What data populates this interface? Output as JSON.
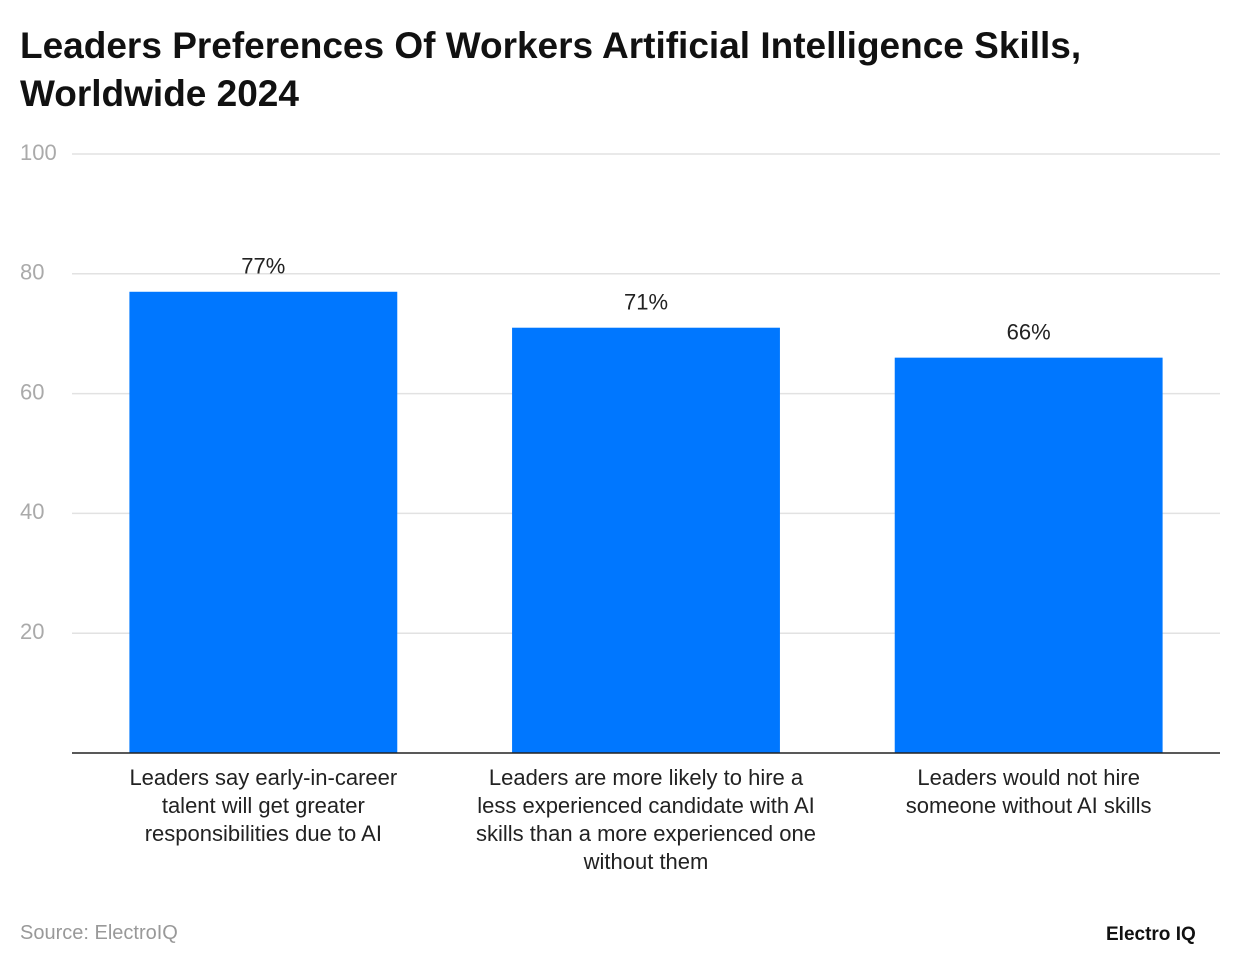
{
  "chart_data": {
    "type": "bar",
    "title": "Leaders Preferences Of Workers Artificial Intelligence Skills, Worldwide 2024",
    "categories": [
      "Leaders say early-in-career talent will get greater responsibilities due to AI",
      "Leaders are more likely to hire a less experienced candidate with AI skills than a more experienced one without them",
      "Leaders would not hire someone without AI skills"
    ],
    "values": [
      77,
      71,
      66
    ],
    "value_labels": [
      "77%",
      "71%",
      "66%"
    ],
    "color": "#0077ff",
    "ylim": [
      0,
      100
    ],
    "yticks": [
      20,
      40,
      60,
      80,
      100
    ],
    "grid": true,
    "source": "Source: ElectroIQ",
    "brand": "Electro IQ"
  }
}
